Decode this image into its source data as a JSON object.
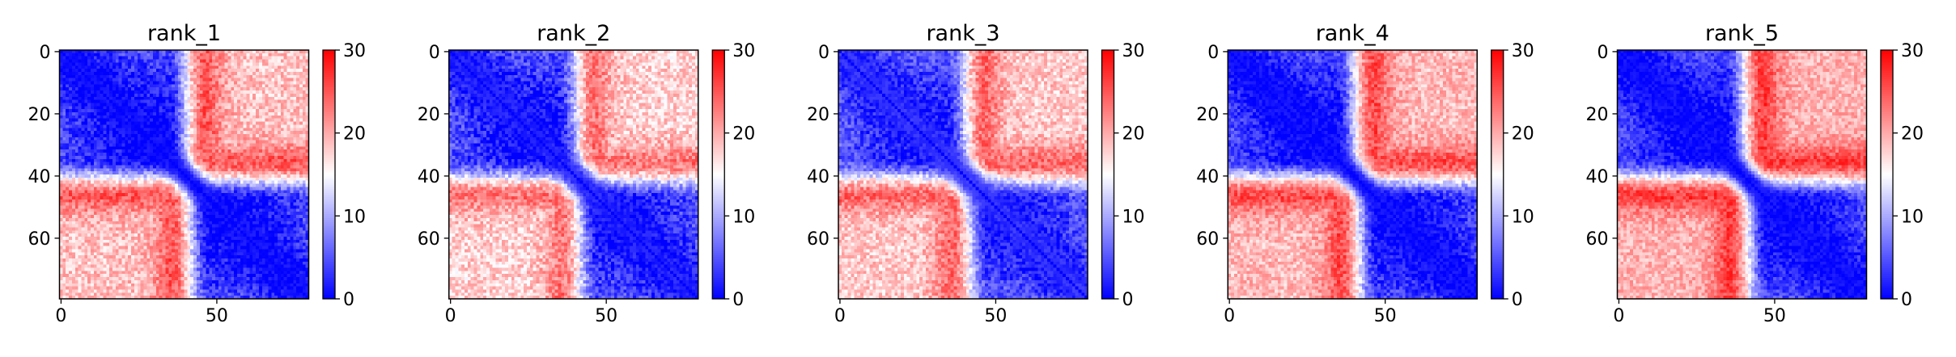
{
  "figure": {
    "background": "#ffffff"
  },
  "chart_data": [
    {
      "type": "heatmap",
      "title": "rank_1",
      "matrix_size": 80,
      "xticks": [
        0,
        50
      ],
      "yticks": [
        0,
        20,
        40,
        60
      ],
      "colorbar": {
        "min": 0,
        "max": 30,
        "ticks": [
          0,
          10,
          20,
          30
        ],
        "colormap": "bwr"
      },
      "pattern": {
        "within_high": 0,
        "cross_high": 29,
        "diag_width": 5,
        "diag_floor": 1,
        "noise": 3.2,
        "seed": 11
      }
    },
    {
      "type": "heatmap",
      "title": "rank_2",
      "matrix_size": 80,
      "xticks": [
        0,
        50
      ],
      "yticks": [
        0,
        20,
        40,
        60
      ],
      "colorbar": {
        "min": 0,
        "max": 30,
        "ticks": [
          0,
          10,
          20,
          30
        ],
        "colormap": "bwr"
      },
      "pattern": {
        "within_high": 1,
        "cross_high": 27,
        "diag_width": 6,
        "diag_floor": 2,
        "noise": 3.4,
        "seed": 23
      }
    },
    {
      "type": "heatmap",
      "title": "rank_3",
      "matrix_size": 80,
      "xticks": [
        0,
        50
      ],
      "yticks": [
        0,
        20,
        40,
        60
      ],
      "colorbar": {
        "min": 0,
        "max": 30,
        "ticks": [
          0,
          10,
          20,
          30
        ],
        "colormap": "bwr"
      },
      "pattern": {
        "within_high": 2,
        "cross_high": 28,
        "diag_width": 6,
        "diag_floor": 3,
        "noise": 3.2,
        "seed": 37
      }
    },
    {
      "type": "heatmap",
      "title": "rank_4",
      "matrix_size": 80,
      "xticks": [
        0,
        50
      ],
      "yticks": [
        0,
        20,
        40,
        60
      ],
      "colorbar": {
        "min": 0,
        "max": 30,
        "ticks": [
          0,
          10,
          20,
          30
        ],
        "colormap": "bwr"
      },
      "pattern": {
        "within_high": 0,
        "cross_high": 30,
        "diag_width": 5,
        "diag_floor": 1,
        "noise": 3.0,
        "seed": 41
      }
    },
    {
      "type": "heatmap",
      "title": "rank_5",
      "matrix_size": 80,
      "xticks": [
        0,
        50
      ],
      "yticks": [
        0,
        20,
        40,
        60
      ],
      "colorbar": {
        "min": 0,
        "max": 30,
        "ticks": [
          0,
          10,
          20,
          30
        ],
        "colormap": "bwr"
      },
      "pattern": {
        "within_high": 0,
        "cross_high": 31,
        "diag_width": 5,
        "diag_floor": 1,
        "noise": 2.8,
        "seed": 59
      }
    }
  ]
}
